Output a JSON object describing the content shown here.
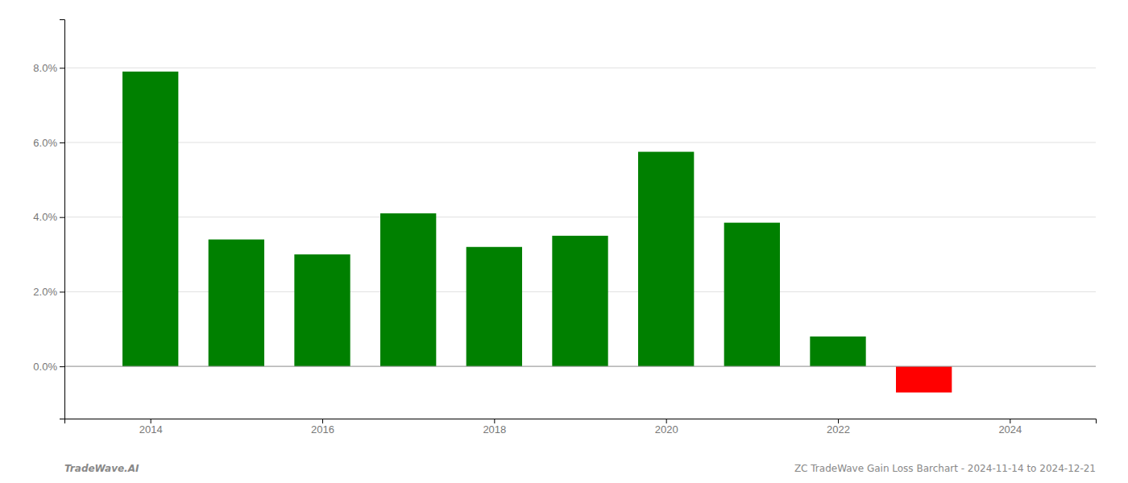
{
  "chart_data": {
    "type": "bar",
    "title": "ZC TradeWave Gain Loss Barchart - 2024-11-14 to 2024-12-21",
    "annotations": [
      "TradeWave.AI"
    ],
    "x": [
      2014,
      2015,
      2016,
      2017,
      2018,
      2019,
      2020,
      2021,
      2022,
      2023
    ],
    "values": [
      0.079,
      0.034,
      0.03,
      0.041,
      0.032,
      0.035,
      0.0575,
      0.0385,
      0.008,
      -0.007
    ],
    "colors": [
      "#008000",
      "#008000",
      "#008000",
      "#008000",
      "#008000",
      "#008000",
      "#008000",
      "#008000",
      "#008000",
      "#ff0000"
    ],
    "xlim": [
      2013.0,
      2025.0
    ],
    "xticks": [
      2014,
      2016,
      2018,
      2020,
      2022,
      2024
    ],
    "ylim": [
      -0.014,
      0.093
    ],
    "yticks": [
      {
        "value": 0.0,
        "label": "0.0%"
      },
      {
        "value": 0.02,
        "label": "2.0%"
      },
      {
        "value": 0.04,
        "label": "4.0%"
      },
      {
        "value": 0.06,
        "label": "6.0%"
      },
      {
        "value": 0.08,
        "label": "8.0%"
      }
    ],
    "grid": true
  }
}
